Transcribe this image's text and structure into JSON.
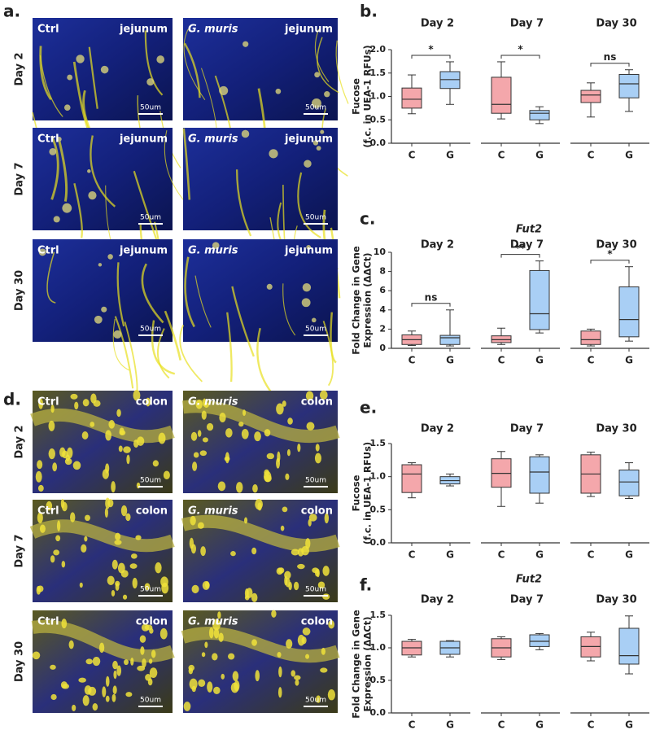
{
  "image_figures": [
    {
      "label": "a.",
      "rows": [
        {
          "day": "Day 2",
          "cells": [
            {
              "group": "Ctrl",
              "tissue": "jejunum",
              "scale": "50um"
            },
            {
              "group": "G. muris",
              "tissue": "jejunum",
              "scale": "50um"
            }
          ]
        },
        {
          "day": "Day 7",
          "cells": [
            {
              "group": "Ctrl",
              "tissue": "jejunum",
              "scale": "50um"
            },
            {
              "group": "G. muris",
              "tissue": "jejunum",
              "scale": "50um"
            }
          ]
        },
        {
          "day": "Day 30",
          "cells": [
            {
              "group": "Ctrl",
              "tissue": "jejunum",
              "scale": "50um"
            },
            {
              "group": "G. muris",
              "tissue": "jejunum",
              "scale": "50um"
            }
          ]
        }
      ]
    },
    {
      "label": "d.",
      "rows": [
        {
          "day": "Day 2",
          "cells": [
            {
              "group": "Ctrl",
              "tissue": "colon",
              "scale": "50um"
            },
            {
              "group": "G. muris",
              "tissue": "colon",
              "scale": "50um"
            }
          ]
        },
        {
          "day": "Day 7",
          "cells": [
            {
              "group": "Ctrl",
              "tissue": "colon",
              "scale": "50um"
            },
            {
              "group": "G. muris",
              "tissue": "colon",
              "scale": "50um"
            }
          ]
        },
        {
          "day": "Day 30",
          "cells": [
            {
              "group": "Ctrl",
              "tissue": "colon",
              "scale": "50um"
            },
            {
              "group": "G. muris",
              "tissue": "colon",
              "scale": "50um"
            }
          ]
        }
      ]
    }
  ],
  "chart_data": [
    {
      "type": "box",
      "label": "b.",
      "ylabel": [
        "Fucose",
        "(f.c. in UEA-1 RFUs)"
      ],
      "ylim": [
        0,
        2
      ],
      "yticks": [
        {
          "value": 0,
          "label": "0.0"
        },
        0.5,
        {
          "value": 1,
          "label": "1.0"
        },
        1.5,
        {
          "value": 2,
          "label": "2.0"
        }
      ],
      "colors": [
        "#f4a7ab",
        "#a9cff5"
      ],
      "groups": [
        {
          "title": "Day 2",
          "categories": [
            "C",
            "G"
          ],
          "boxes": [
            [
              0.63,
              0.75,
              0.94,
              1.18,
              1.46
            ],
            [
              0.83,
              1.17,
              1.36,
              1.53,
              1.74
            ]
          ],
          "annotation": "*"
        },
        {
          "title": "Day 7",
          "categories": [
            "C",
            "G"
          ],
          "boxes": [
            [
              0.52,
              0.64,
              0.83,
              1.41,
              1.74
            ],
            [
              0.42,
              0.5,
              0.64,
              0.7,
              0.78
            ]
          ],
          "annotation": "*"
        },
        {
          "title": "Day 30",
          "categories": [
            "C",
            "G"
          ],
          "boxes": [
            [
              0.56,
              0.87,
              1.03,
              1.13,
              1.29
            ],
            [
              0.68,
              0.97,
              1.27,
              1.47,
              1.57
            ]
          ],
          "annotation": "ns"
        }
      ]
    },
    {
      "type": "box",
      "label": "c.",
      "title": "Fut2",
      "ylabel": [
        "Fold Change in Gene",
        "Expression (ΔΔCt)"
      ],
      "ylim": [
        0,
        10
      ],
      "yticks": [
        0,
        2,
        4,
        6,
        8,
        10
      ],
      "colors": [
        "#f4a7ab",
        "#a9cff5"
      ],
      "groups": [
        {
          "title": "Day 2",
          "categories": [
            "C",
            "G"
          ],
          "boxes": [
            [
              0.3,
              0.4,
              0.9,
              1.4,
              1.8
            ],
            [
              0.25,
              0.4,
              1.1,
              1.35,
              4.0
            ]
          ],
          "annotation": "ns"
        },
        {
          "title": "Day 7",
          "categories": [
            "C",
            "G"
          ],
          "boxes": [
            [
              0.4,
              0.6,
              0.9,
              1.3,
              2.1
            ],
            [
              1.6,
              1.95,
              3.6,
              8.1,
              9.1
            ]
          ],
          "annotation": "**"
        },
        {
          "title": "Day 30",
          "categories": [
            "C",
            "G"
          ],
          "boxes": [
            [
              0.25,
              0.4,
              0.9,
              1.8,
              2.0
            ],
            [
              0.75,
              1.2,
              3.0,
              6.4,
              8.5
            ]
          ],
          "annotation": "*"
        }
      ]
    },
    {
      "type": "box",
      "label": "e.",
      "ylabel": [
        "Fucose",
        "(f.c. in UEA-1 RFUs)"
      ],
      "ylim": [
        0,
        1.5
      ],
      "yticks": [
        {
          "value": 0,
          "label": "0.0"
        },
        0.5,
        {
          "value": 1,
          "label": "1.0"
        },
        1.5
      ],
      "colors": [
        "#f4a7ab",
        "#a9cff5"
      ],
      "groups": [
        {
          "title": "Day 2",
          "categories": [
            "C",
            "G"
          ],
          "boxes": [
            [
              0.68,
              0.76,
              1.04,
              1.18,
              1.21
            ],
            [
              0.86,
              0.89,
              0.94,
              1.0,
              1.04
            ]
          ]
        },
        {
          "title": "Day 7",
          "categories": [
            "C",
            "G"
          ],
          "boxes": [
            [
              0.55,
              0.84,
              1.05,
              1.27,
              1.38
            ],
            [
              0.6,
              0.75,
              1.07,
              1.3,
              1.33
            ]
          ]
        },
        {
          "title": "Day 30",
          "categories": [
            "C",
            "G"
          ],
          "boxes": [
            [
              0.7,
              0.75,
              1.04,
              1.33,
              1.37
            ],
            [
              0.67,
              0.71,
              0.92,
              1.1,
              1.21
            ]
          ]
        }
      ]
    },
    {
      "type": "box",
      "label": "f.",
      "title": "Fut2",
      "ylabel": [
        "Fold Change in Gene",
        "Expression (ΔΔCt)"
      ],
      "ylim": [
        0,
        1.5
      ],
      "yticks": [
        {
          "value": 0,
          "label": "0.0"
        },
        0.5,
        {
          "value": 1,
          "label": "1.0"
        },
        1.5
      ],
      "colors": [
        "#f4a7ab",
        "#a9cff5"
      ],
      "groups": [
        {
          "title": "Day 2",
          "categories": [
            "C",
            "G"
          ],
          "boxes": [
            [
              0.86,
              0.89,
              1.0,
              1.1,
              1.13
            ],
            [
              0.86,
              0.9,
              1.0,
              1.1,
              1.11
            ]
          ]
        },
        {
          "title": "Day 7",
          "categories": [
            "C",
            "G"
          ],
          "boxes": [
            [
              0.82,
              0.86,
              1.0,
              1.14,
              1.17
            ],
            [
              0.97,
              1.02,
              1.1,
              1.2,
              1.22
            ]
          ]
        },
        {
          "title": "Day 30",
          "categories": [
            "C",
            "G"
          ],
          "boxes": [
            [
              0.8,
              0.86,
              1.02,
              1.17,
              1.24
            ],
            [
              0.6,
              0.75,
              0.88,
              1.3,
              1.49
            ]
          ]
        }
      ]
    }
  ]
}
